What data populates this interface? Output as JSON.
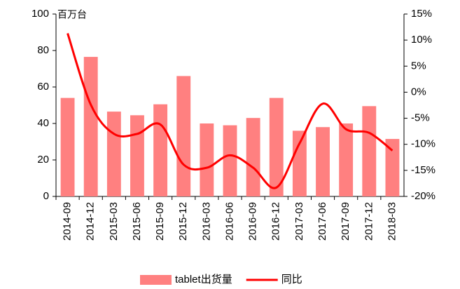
{
  "chart_data": {
    "type": "bar_line",
    "unit_label": "百万台",
    "categories": [
      "2014-09",
      "2014-12",
      "2015-03",
      "2015-06",
      "2015-09",
      "2015-12",
      "2016-03",
      "2016-06",
      "2016-09",
      "2016-12",
      "2017-03",
      "2017-06",
      "2017-09",
      "2017-12",
      "2018-03"
    ],
    "series": [
      {
        "name": "tablet出货量",
        "type": "bar",
        "color": "#ff8080",
        "values": [
          54,
          76.5,
          46.5,
          44.5,
          50.5,
          66,
          40,
          39,
          43,
          54,
          36,
          38,
          40,
          49.5,
          31.5
        ]
      },
      {
        "name": "同比",
        "type": "line",
        "axis": "y2",
        "color": "#ff0000",
        "values": [
          11.3,
          -2.4,
          -8,
          -8,
          -6.2,
          -13.9,
          -14.5,
          -12.1,
          -14.5,
          -18.3,
          -9.8,
          -2.2,
          -7.1,
          -7.8,
          -11.2
        ]
      }
    ],
    "ylim": [
      0,
      100
    ],
    "yticks": [
      0,
      20,
      40,
      60,
      80,
      100
    ],
    "y2lim": [
      -20,
      15
    ],
    "y2ticks": [
      {
        "value": 15,
        "label": "15%"
      },
      {
        "value": 10,
        "label": "10%"
      },
      {
        "value": 5,
        "label": "5%"
      },
      {
        "value": 0,
        "label": "0%"
      },
      {
        "value": -5,
        "label": "-5%"
      },
      {
        "value": -10,
        "label": "-10%"
      },
      {
        "value": -15,
        "label": "-15%"
      },
      {
        "value": -20,
        "label": "-20%"
      }
    ],
    "grid": false
  }
}
